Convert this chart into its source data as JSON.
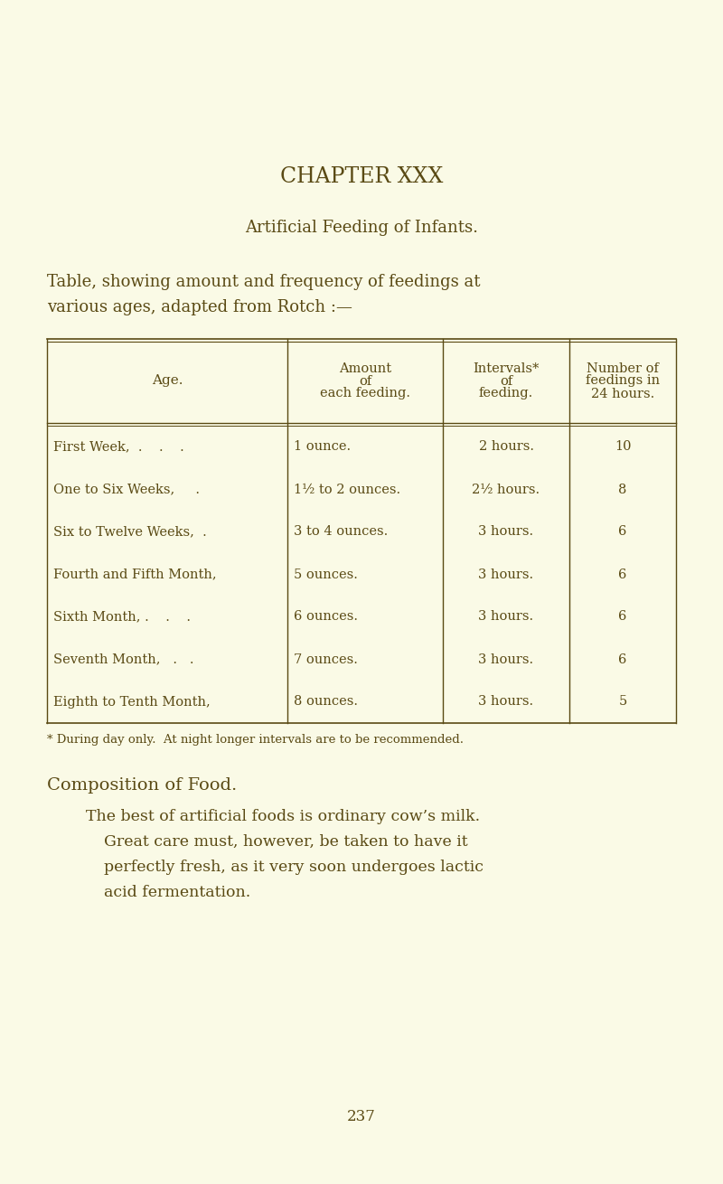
{
  "page_bg": "#FAFAE6",
  "text_color": "#5a4a14",
  "chapter_title": "CHAPTER XXX",
  "section_title": "Artificial Feeding of Infants.",
  "table_intro_line1": "Table, showing amount and frequency of feedings at",
  "table_intro_line2": "various ages, adapted from Rotch :—",
  "col_headers_col0": "Age.",
  "col_headers_col1": [
    "Amount",
    "of",
    "each feeding."
  ],
  "col_headers_col2": [
    "Intervals*",
    "of",
    "feeding."
  ],
  "col_headers_col3": [
    "Number of",
    "feedings in",
    "24 hours."
  ],
  "table_rows": [
    [
      "First Week,  .    .    .",
      "1 ounce.",
      "2 hours.",
      "10"
    ],
    [
      "One to Six Weeks,     .",
      "1½ to 2 ounces.",
      "2½ hours.",
      "8"
    ],
    [
      "Six to Twelve Weeks,  .",
      "3 to 4 ounces.",
      "3 hours.",
      "6"
    ],
    [
      "Fourth and Fifth Month,",
      "5 ounces.",
      "3 hours.",
      "6"
    ],
    [
      "Sixth Month, .    .    .",
      "6 ounces.",
      "3 hours.",
      "6"
    ],
    [
      "Seventh Month,   .   .",
      "7 ounces.",
      "3 hours.",
      "6"
    ],
    [
      "Eighth to Tenth Month,",
      "8 ounces.",
      "3 hours.",
      "5"
    ]
  ],
  "footnote": "* During day only.  At night longer intervals are to be recommended.",
  "composition_title": "Composition of Food.",
  "composition_text_lines": [
    "The best of artificial foods is ordinary cow’s milk.",
    "Great care must, however, be taken to have it",
    "perfectly fresh, as it very soon undergoes lactic",
    "acid fermentation."
  ],
  "page_number": "237"
}
